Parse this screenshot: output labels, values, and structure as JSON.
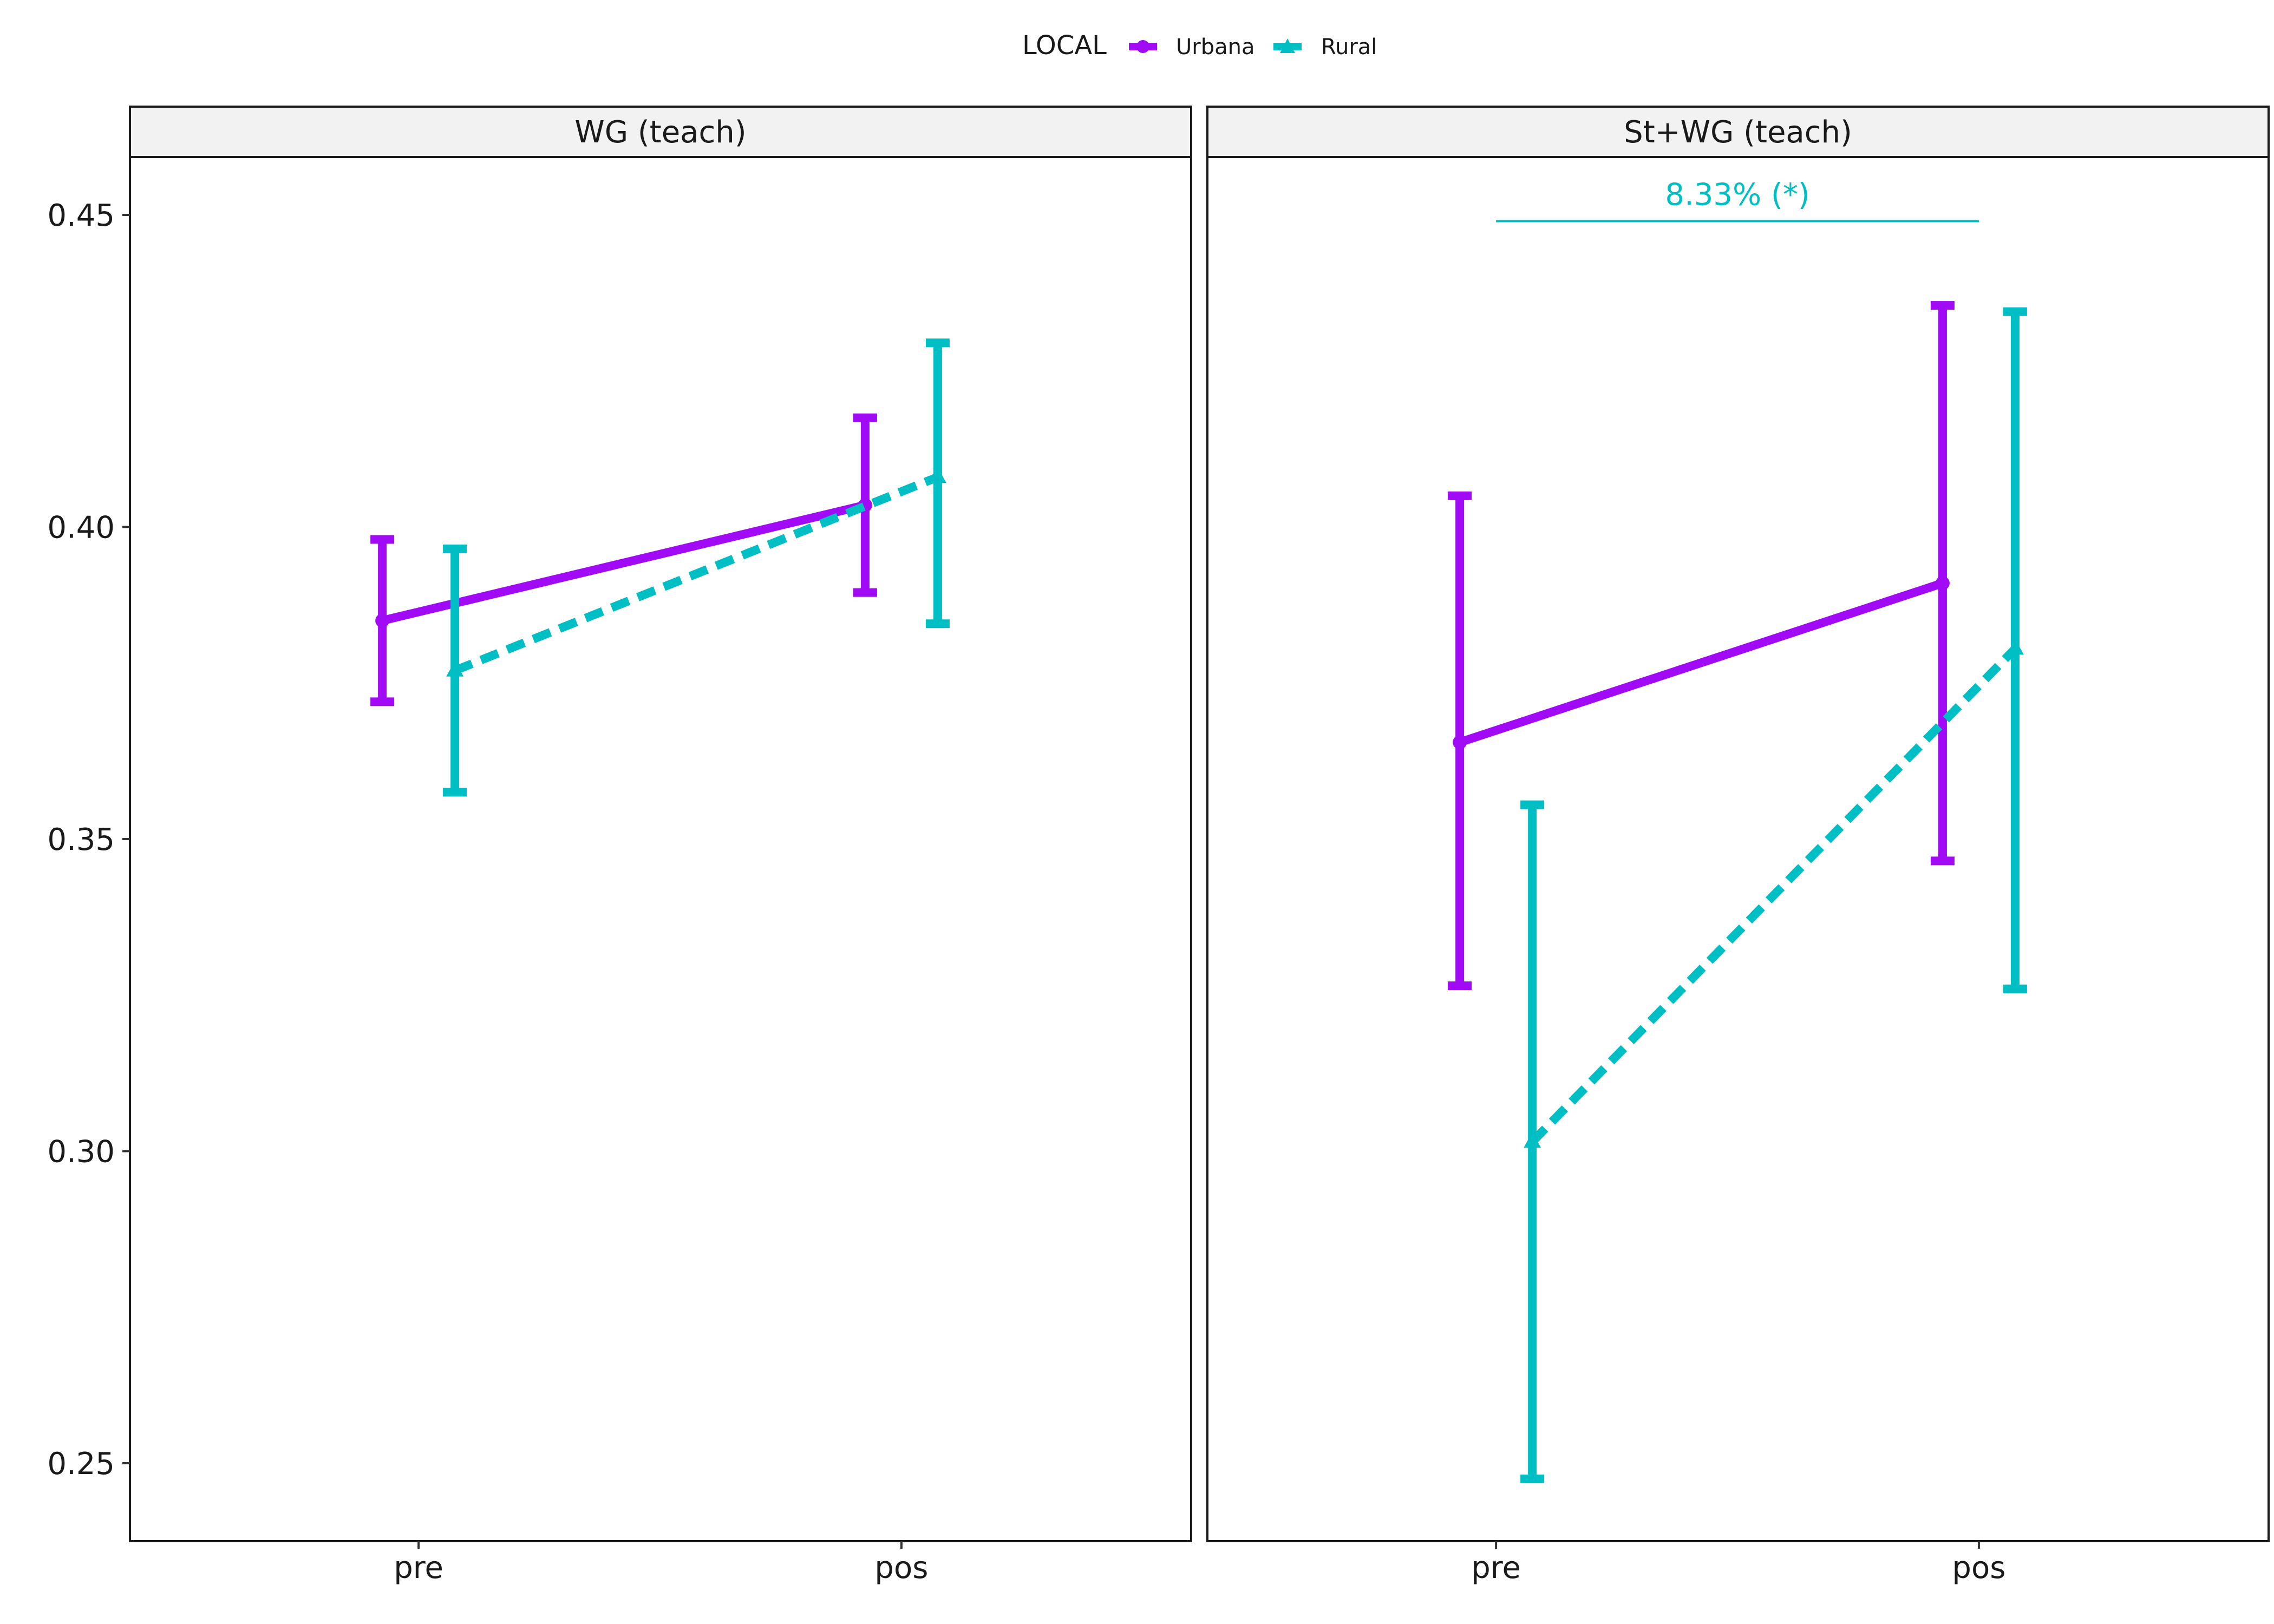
{
  "chart_data": {
    "type": "line",
    "legend": {
      "title": "LOCAL",
      "position": "top",
      "entries": [
        "Urbana",
        "Rural"
      ]
    },
    "colors": {
      "Urbana": "#a10af5",
      "Rural": "#00bfc4"
    },
    "categories": [
      "pre",
      "pos"
    ],
    "ylim": [
      0.238,
      0.46
    ],
    "yticks": [
      "0.25",
      "0.30",
      "0.35",
      "0.40",
      "0.45"
    ],
    "grid": false,
    "panels": [
      {
        "title": "WG (teach)",
        "series": [
          {
            "name": "Urbana",
            "values": [
              0.385,
              0.4035
            ],
            "lower": [
              0.372,
              0.3895
            ],
            "upper": [
              0.398,
              0.4175
            ]
          },
          {
            "name": "Rural",
            "values": [
              0.377,
              0.408
            ],
            "lower": [
              0.3575,
              0.3845
            ],
            "upper": [
              0.3965,
              0.4295
            ]
          }
        ],
        "annotation": null
      },
      {
        "title": "St+WG (teach)",
        "series": [
          {
            "name": "Urbana",
            "values": [
              0.3655,
              0.391
            ],
            "lower": [
              0.3265,
              0.3465
            ],
            "upper": [
              0.405,
              0.4355
            ]
          },
          {
            "name": "Rural",
            "values": [
              0.3015,
              0.3805
            ],
            "lower": [
              0.2475,
              0.326
            ],
            "upper": [
              0.3555,
              0.4345
            ]
          }
        ],
        "annotation": {
          "text": "8.33% (*)",
          "y": 0.449
        }
      }
    ]
  }
}
